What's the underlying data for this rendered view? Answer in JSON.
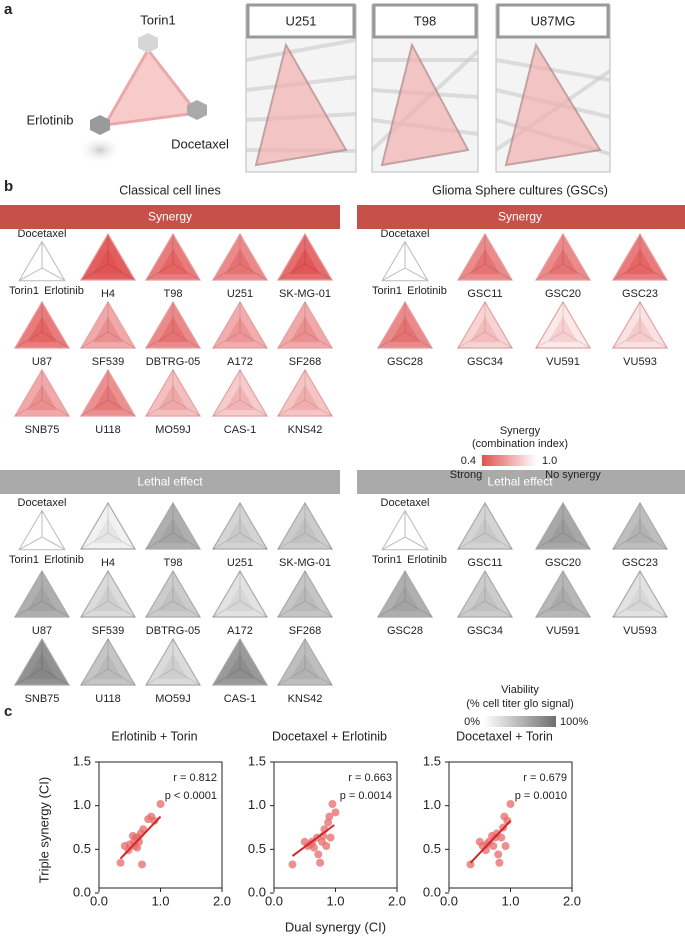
{
  "panel_a": {
    "label": "a",
    "drugs": [
      "Torin1",
      "Erlotinib",
      "Docetaxel"
    ],
    "cell_lines": [
      "U251",
      "T98",
      "U87MG"
    ]
  },
  "panel_b": {
    "label": "b",
    "groups": [
      {
        "title": "Classical cell lines",
        "synergy_header": "Synergy",
        "lethal_header": "Lethal effect",
        "key": [
          "Docetaxel",
          "Torin1",
          "Erlotinib"
        ],
        "cells": [
          "H4",
          "T98",
          "U251",
          "SK-MG-01",
          "U87",
          "SF539",
          "DBTRG-05",
          "A172",
          "SF268",
          "SNB75",
          "U118",
          "MO59J",
          "CAS-1",
          "KNS42"
        ],
        "synergy": [
          0.45,
          0.55,
          0.6,
          0.5,
          0.55,
          0.7,
          0.6,
          0.72,
          0.7,
          0.7,
          0.62,
          0.78,
          0.82,
          0.8
        ],
        "viability": [
          10,
          55,
          30,
          35,
          55,
          25,
          35,
          20,
          40,
          75,
          40,
          25,
          70,
          45
        ]
      },
      {
        "title": "Glioma Sphere cultures (GSCs)",
        "synergy_header": "Synergy",
        "lethal_header": "Lethal effect",
        "key": [
          "Docetaxel",
          "Torin1",
          "Erlotinib"
        ],
        "cells": [
          "GSC11",
          "GSC20",
          "GSC23",
          "GSC28",
          "GSC34",
          "VU591",
          "VU593"
        ],
        "synergy": [
          0.6,
          0.6,
          0.55,
          0.6,
          0.85,
          0.92,
          0.9
        ],
        "viability": [
          30,
          60,
          45,
          55,
          35,
          50,
          20
        ]
      }
    ],
    "synergy_legend": {
      "title": "Synergy",
      "subtitle": "(combination index)",
      "range": [
        0.4,
        {
          "value": 1,
          "label": "1.0"
        }
      ],
      "low_label": "Strong",
      "high_label": "No synergy"
    },
    "viability_legend": {
      "title": "Viability",
      "subtitle": "(% cell titer glo signal)",
      "range": [
        {
          "value": 0,
          "label": "0%"
        },
        {
          "value": 100,
          "label": "100%"
        }
      ]
    }
  },
  "panel_c_label": "c",
  "chart_data": [
    {
      "type": "scatter",
      "title": "Erlotinib + Torin",
      "annotations": [
        "r = 0.812",
        "p < 0.0001"
      ],
      "ylabel": "Triple synergy (CI)",
      "color": "#e86a6a",
      "x": [
        0.35,
        0.42,
        0.48,
        0.5,
        0.55,
        0.57,
        0.58,
        0.6,
        0.62,
        0.63,
        0.65,
        0.68,
        0.7,
        0.72,
        0.8,
        0.85,
        0.9,
        1.0
      ],
      "y": [
        0.3,
        0.5,
        0.45,
        0.52,
        0.62,
        0.55,
        0.5,
        0.6,
        0.48,
        0.6,
        0.55,
        0.65,
        0.28,
        0.7,
        0.82,
        0.85,
        0.8,
        1.0
      ],
      "fit": {
        "x": [
          0.35,
          1.0
        ],
        "y": [
          0.35,
          0.85
        ]
      },
      "xlim": [
        0,
        2
      ],
      "ylim": [
        0,
        1.5
      ],
      "xticks": [
        {
          "value": 0,
          "label": "0.0"
        },
        {
          "value": 1,
          "label": "1.0"
        },
        {
          "value": 2,
          "label": "2.0"
        }
      ],
      "yticks": [
        {
          "value": 0,
          "label": "0.0"
        },
        0.5,
        {
          "value": 1,
          "label": "1.0"
        },
        1.5
      ]
    },
    {
      "type": "scatter",
      "title": "Docetaxel + Erlotinib",
      "annotations": [
        "r = 0.663",
        "p = 0.0014"
      ],
      "xlabel": "Dual synergy (CI)",
      "color": "#e86a6a",
      "x": [
        0.3,
        0.5,
        0.55,
        0.6,
        0.62,
        0.65,
        0.7,
        0.72,
        0.75,
        0.78,
        0.8,
        0.82,
        0.85,
        0.88,
        0.9,
        0.92,
        0.95,
        1.0
      ],
      "y": [
        0.28,
        0.55,
        0.5,
        0.52,
        0.55,
        0.48,
        0.6,
        0.4,
        0.3,
        0.55,
        0.62,
        0.7,
        0.5,
        0.78,
        0.85,
        0.6,
        1.0,
        0.9
      ],
      "fit": {
        "x": [
          0.3,
          0.98
        ],
        "y": [
          0.38,
          0.75
        ]
      },
      "xlim": [
        0,
        2
      ],
      "ylim": [
        0,
        1.5
      ],
      "xticks": [
        {
          "value": 0,
          "label": "0.0"
        },
        {
          "value": 1,
          "label": "1.0"
        },
        {
          "value": 2,
          "label": "2.0"
        }
      ],
      "yticks": [
        {
          "value": 0,
          "label": "0.0"
        },
        0.5,
        {
          "value": 1,
          "label": "1.0"
        },
        1.5
      ]
    },
    {
      "type": "scatter",
      "title": "Docetaxel + Torin",
      "annotations": [
        "r = 0.679",
        "p = 0.0010"
      ],
      "color": "#e86a6a",
      "x": [
        0.35,
        0.5,
        0.55,
        0.6,
        0.62,
        0.65,
        0.7,
        0.72,
        0.75,
        0.78,
        0.8,
        0.82,
        0.85,
        0.88,
        0.9,
        0.92,
        0.95,
        1.0
      ],
      "y": [
        0.28,
        0.55,
        0.5,
        0.45,
        0.52,
        0.55,
        0.62,
        0.5,
        0.6,
        0.65,
        0.4,
        0.3,
        0.6,
        0.72,
        0.85,
        0.5,
        0.8,
        1.0
      ],
      "fit": {
        "x": [
          0.35,
          1.0
        ],
        "y": [
          0.3,
          0.8
        ]
      },
      "xlim": [
        0,
        2
      ],
      "ylim": [
        0,
        1.5
      ],
      "xticks": [
        {
          "value": 0,
          "label": "0.0"
        },
        {
          "value": 1,
          "label": "1.0"
        },
        {
          "value": 2,
          "label": "2.0"
        }
      ],
      "yticks": [
        {
          "value": 0,
          "label": "0.0"
        },
        0.5,
        {
          "value": 1,
          "label": "1.0"
        },
        1.5
      ]
    }
  ]
}
